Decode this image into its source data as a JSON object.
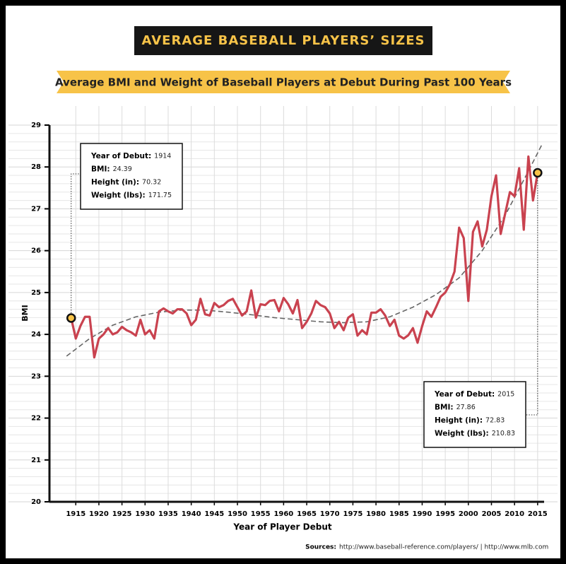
{
  "chart_data": {
    "type": "line",
    "title": "AVERAGE BASEBALL PLAYERS’ SIZES",
    "subtitle": "Average BMI and Weight of Baseball Players at Debut During Past 100 Years",
    "x_label": "Year of Player Debut",
    "y_label": "BMI",
    "sources_label": "Sources:",
    "sources": "http://www.baseball-reference.com/players/ | http://www.mlb.com",
    "xlim": [
      1909.3,
      2016.4
    ],
    "ylim": [
      20,
      29
    ],
    "xticks": [
      1915,
      1920,
      1925,
      1930,
      1935,
      1940,
      1945,
      1950,
      1955,
      1960,
      1965,
      1970,
      1975,
      1980,
      1985,
      1990,
      1995,
      2000,
      2005,
      2010,
      2015
    ],
    "yticks": [
      20,
      21,
      22,
      23,
      24,
      25,
      26,
      27,
      28,
      29
    ],
    "grid": true,
    "series": [
      {
        "color": "#c9424f",
        "dashed": false,
        "x": [
          1914,
          1915,
          1916,
          1917,
          1918,
          1919,
          1920,
          1921,
          1922,
          1923,
          1924,
          1925,
          1926,
          1927,
          1928,
          1929,
          1930,
          1931,
          1932,
          1933,
          1934,
          1935,
          1936,
          1937,
          1938,
          1939,
          1940,
          1941,
          1942,
          1943,
          1944,
          1945,
          1946,
          1947,
          1948,
          1949,
          1950,
          1951,
          1952,
          1953,
          1954,
          1955,
          1956,
          1957,
          1958,
          1959,
          1960,
          1961,
          1962,
          1963,
          1964,
          1965,
          1966,
          1967,
          1968,
          1969,
          1970,
          1971,
          1972,
          1973,
          1974,
          1975,
          1976,
          1977,
          1978,
          1979,
          1980,
          1981,
          1982,
          1983,
          1984,
          1985,
          1986,
          1987,
          1988,
          1989,
          1990,
          1991,
          1992,
          1993,
          1994,
          1995,
          1996,
          1997,
          1998,
          1999,
          2000,
          2001,
          2002,
          2003,
          2004,
          2005,
          2006,
          2007,
          2008,
          2009,
          2010,
          2011,
          2012,
          2013,
          2014,
          2015
        ],
        "values": [
          24.39,
          23.9,
          24.2,
          24.42,
          24.42,
          23.45,
          23.9,
          24.0,
          24.15,
          24.0,
          24.05,
          24.18,
          24.1,
          24.05,
          23.97,
          24.35,
          24.0,
          24.1,
          23.9,
          24.55,
          24.62,
          24.55,
          24.5,
          24.6,
          24.6,
          24.5,
          24.22,
          24.35,
          24.85,
          24.48,
          24.45,
          24.75,
          24.65,
          24.7,
          24.8,
          24.85,
          24.65,
          24.45,
          24.55,
          25.05,
          24.4,
          24.72,
          24.7,
          24.8,
          24.82,
          24.55,
          24.87,
          24.72,
          24.5,
          24.82,
          24.15,
          24.3,
          24.5,
          24.8,
          24.7,
          24.65,
          24.5,
          24.15,
          24.3,
          24.1,
          24.4,
          24.48,
          23.97,
          24.1,
          24.0,
          24.52,
          24.52,
          24.6,
          24.45,
          24.2,
          24.35,
          23.97,
          23.9,
          23.98,
          24.15,
          23.8,
          24.2,
          24.55,
          24.42,
          24.65,
          24.9,
          25.0,
          25.2,
          25.5,
          26.55,
          26.3,
          24.8,
          26.45,
          26.7,
          26.1,
          26.5,
          27.3,
          27.8,
          26.4,
          26.9,
          27.4,
          27.3,
          27.97,
          26.5,
          28.25,
          27.2,
          27.86
        ]
      },
      {
        "color": "#666666",
        "dashed": true,
        "x": [
          1913,
          1918,
          1923,
          1928,
          1933,
          1938,
          1943,
          1948,
          1953,
          1958,
          1963,
          1968,
          1973,
          1978,
          1983,
          1988,
          1993,
          1998,
          2003,
          2008,
          2013,
          2016
        ],
        "values": [
          23.48,
          23.9,
          24.22,
          24.42,
          24.53,
          24.58,
          24.58,
          24.53,
          24.47,
          24.4,
          24.35,
          24.3,
          24.28,
          24.3,
          24.42,
          24.65,
          24.95,
          25.35,
          26.0,
          26.85,
          27.9,
          28.55
        ]
      }
    ],
    "annotations": [
      {
        "lines": [
          {
            "label": "Year of Debut:",
            "value": 1914
          },
          {
            "label": "BMI:",
            "value": 24.39
          },
          {
            "label": "Height (in):",
            "value": 70.32
          },
          {
            "label": "Weight (lbs):",
            "value": 171.75
          }
        ]
      },
      {
        "lines": [
          {
            "label": "Year of Debut:",
            "value": 2015
          },
          {
            "label": "BMI:",
            "value": 27.86
          },
          {
            "label": "Height (in):",
            "value": 72.83
          },
          {
            "label": "Weight (lbs):",
            "value": 210.83
          }
        ]
      }
    ]
  }
}
